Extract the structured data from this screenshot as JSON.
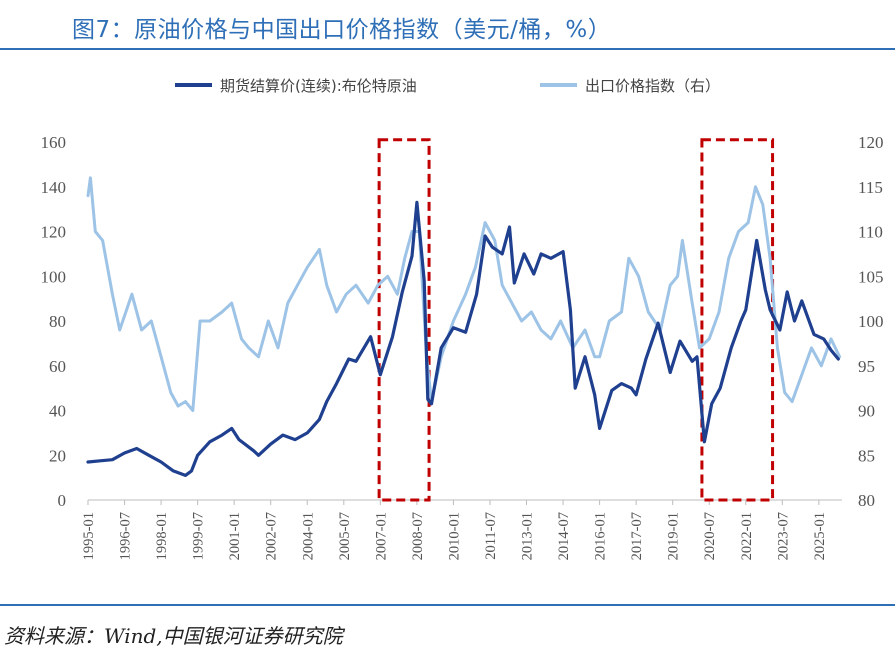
{
  "page": {
    "title": "图7：原油价格与中国出口价格指数（美元/桶，%）",
    "source": "资料来源：Wind,中国银河证券研究院"
  },
  "chart_data": {
    "type": "line",
    "x_ticks": [
      "1995-01",
      "1996-07",
      "1998-01",
      "1999-07",
      "2001-01",
      "2002-07",
      "2004-01",
      "2005-07",
      "2007-01",
      "2008-07",
      "2010-01",
      "2011-07",
      "2013-01",
      "2014-07",
      "2016-01",
      "2017-07",
      "2019-01",
      "2020-07",
      "2022-01",
      "2023-07",
      "2025-01"
    ],
    "y_left": {
      "range": [
        0,
        160
      ],
      "ticks": [
        "0",
        "20",
        "40",
        "60",
        "80",
        "100",
        "120",
        "140",
        "160"
      ]
    },
    "y_right": {
      "range": [
        80,
        120
      ],
      "ticks": [
        "80",
        "85",
        "90",
        "95",
        "100",
        "105",
        "110",
        "115",
        "120"
      ]
    },
    "series": [
      {
        "name": "期货结算价(连续):布伦特原油",
        "axis": "left",
        "color": "#1f3f8f",
        "points": [
          [
            1995.0,
            17
          ],
          [
            1995.5,
            17.5
          ],
          [
            1996.0,
            18
          ],
          [
            1996.5,
            21
          ],
          [
            1997.0,
            23
          ],
          [
            1997.5,
            20
          ],
          [
            1998.0,
            17
          ],
          [
            1998.5,
            13
          ],
          [
            1999.0,
            11
          ],
          [
            1999.25,
            13
          ],
          [
            1999.5,
            20
          ],
          [
            2000.0,
            26
          ],
          [
            2000.5,
            29
          ],
          [
            2000.9,
            32
          ],
          [
            2001.2,
            27
          ],
          [
            2001.8,
            22
          ],
          [
            2002.0,
            20
          ],
          [
            2002.5,
            25
          ],
          [
            2003.0,
            29
          ],
          [
            2003.5,
            27
          ],
          [
            2004.0,
            30
          ],
          [
            2004.5,
            36
          ],
          [
            2004.8,
            44
          ],
          [
            2005.2,
            52
          ],
          [
            2005.7,
            63
          ],
          [
            2006.0,
            62
          ],
          [
            2006.6,
            73
          ],
          [
            2007.0,
            56
          ],
          [
            2007.5,
            73
          ],
          [
            2007.9,
            93
          ],
          [
            2008.3,
            109
          ],
          [
            2008.5,
            133
          ],
          [
            2008.8,
            98
          ],
          [
            2008.95,
            45
          ],
          [
            2009.1,
            43
          ],
          [
            2009.5,
            68
          ],
          [
            2010.0,
            77
          ],
          [
            2010.5,
            75
          ],
          [
            2010.95,
            92
          ],
          [
            2011.3,
            118
          ],
          [
            2011.6,
            113
          ],
          [
            2012.0,
            110
          ],
          [
            2012.3,
            122
          ],
          [
            2012.5,
            97
          ],
          [
            2012.9,
            110
          ],
          [
            2013.3,
            101
          ],
          [
            2013.6,
            110
          ],
          [
            2014.0,
            108
          ],
          [
            2014.5,
            111
          ],
          [
            2014.8,
            85
          ],
          [
            2015.0,
            50
          ],
          [
            2015.4,
            64
          ],
          [
            2015.8,
            47
          ],
          [
            2016.0,
            32
          ],
          [
            2016.5,
            49
          ],
          [
            2016.9,
            52
          ],
          [
            2017.3,
            50
          ],
          [
            2017.5,
            47
          ],
          [
            2017.9,
            63
          ],
          [
            2018.4,
            79
          ],
          [
            2018.9,
            57
          ],
          [
            2019.3,
            71
          ],
          [
            2019.8,
            62
          ],
          [
            2020.0,
            64
          ],
          [
            2020.3,
            26
          ],
          [
            2020.6,
            43
          ],
          [
            2020.95,
            50
          ],
          [
            2021.4,
            68
          ],
          [
            2021.8,
            80
          ],
          [
            2022.0,
            85
          ],
          [
            2022.45,
            116
          ],
          [
            2022.8,
            94
          ],
          [
            2023.0,
            85
          ],
          [
            2023.4,
            76
          ],
          [
            2023.7,
            93
          ],
          [
            2024.0,
            80
          ],
          [
            2024.3,
            89
          ],
          [
            2024.8,
            74
          ],
          [
            2025.2,
            72
          ],
          [
            2025.5,
            67
          ],
          [
            2025.8,
            63
          ]
        ]
      },
      {
        "name": "出口价格指数（右）",
        "axis": "right",
        "color": "#9dc3e6",
        "points": [
          [
            1995.0,
            114
          ],
          [
            1995.1,
            116
          ],
          [
            1995.3,
            110
          ],
          [
            1995.6,
            109
          ],
          [
            1996.0,
            103
          ],
          [
            1996.3,
            99
          ],
          [
            1996.8,
            103
          ],
          [
            1997.2,
            99
          ],
          [
            1997.6,
            100
          ],
          [
            1998.0,
            96
          ],
          [
            1998.4,
            92
          ],
          [
            1998.7,
            90.5
          ],
          [
            1999.0,
            91
          ],
          [
            1999.3,
            90
          ],
          [
            1999.6,
            100
          ],
          [
            2000.0,
            100
          ],
          [
            2000.5,
            101
          ],
          [
            2000.9,
            102
          ],
          [
            2001.3,
            98
          ],
          [
            2001.6,
            97
          ],
          [
            2002.0,
            96
          ],
          [
            2002.4,
            100
          ],
          [
            2002.8,
            97
          ],
          [
            2003.2,
            102
          ],
          [
            2003.6,
            104
          ],
          [
            2004.0,
            106
          ],
          [
            2004.5,
            108
          ],
          [
            2004.8,
            104
          ],
          [
            2005.2,
            101
          ],
          [
            2005.6,
            103
          ],
          [
            2006.0,
            104
          ],
          [
            2006.5,
            102
          ],
          [
            2006.9,
            104
          ],
          [
            2007.3,
            105
          ],
          [
            2007.7,
            103
          ],
          [
            2008.0,
            107
          ],
          [
            2008.3,
            110
          ],
          [
            2008.6,
            110
          ],
          [
            2008.9,
            96
          ],
          [
            2009.1,
            91
          ],
          [
            2009.5,
            96
          ],
          [
            2010.0,
            100
          ],
          [
            2010.5,
            103
          ],
          [
            2010.9,
            106
          ],
          [
            2011.3,
            111
          ],
          [
            2011.7,
            109
          ],
          [
            2012.0,
            104
          ],
          [
            2012.4,
            102
          ],
          [
            2012.8,
            100
          ],
          [
            2013.2,
            101
          ],
          [
            2013.6,
            99
          ],
          [
            2014.0,
            98
          ],
          [
            2014.4,
            100
          ],
          [
            2014.9,
            97
          ],
          [
            2015.4,
            99
          ],
          [
            2015.8,
            96
          ],
          [
            2016.0,
            96
          ],
          [
            2016.4,
            100
          ],
          [
            2016.9,
            101
          ],
          [
            2017.2,
            107
          ],
          [
            2017.6,
            105
          ],
          [
            2018.0,
            101
          ],
          [
            2018.5,
            99
          ],
          [
            2018.9,
            104
          ],
          [
            2019.2,
            105
          ],
          [
            2019.4,
            109
          ],
          [
            2019.8,
            102
          ],
          [
            2020.1,
            97
          ],
          [
            2020.5,
            98
          ],
          [
            2020.9,
            101
          ],
          [
            2021.3,
            107
          ],
          [
            2021.7,
            110
          ],
          [
            2022.1,
            111
          ],
          [
            2022.4,
            115
          ],
          [
            2022.7,
            113
          ],
          [
            2023.0,
            107
          ],
          [
            2023.3,
            97
          ],
          [
            2023.6,
            92
          ],
          [
            2023.9,
            91
          ],
          [
            2024.3,
            94
          ],
          [
            2024.7,
            97
          ],
          [
            2025.1,
            95
          ],
          [
            2025.5,
            98
          ],
          [
            2025.85,
            96
          ]
        ]
      }
    ],
    "highlight_boxes": [
      {
        "x_range": [
          2006.95,
          2009.0
        ],
        "y_range": [
          0,
          161
        ],
        "color": "#c00000"
      },
      {
        "x_range": [
          2020.2,
          2023.1
        ],
        "y_range": [
          0,
          161
        ],
        "color": "#c00000"
      }
    ],
    "legend_position": "top-center",
    "grid": false
  }
}
